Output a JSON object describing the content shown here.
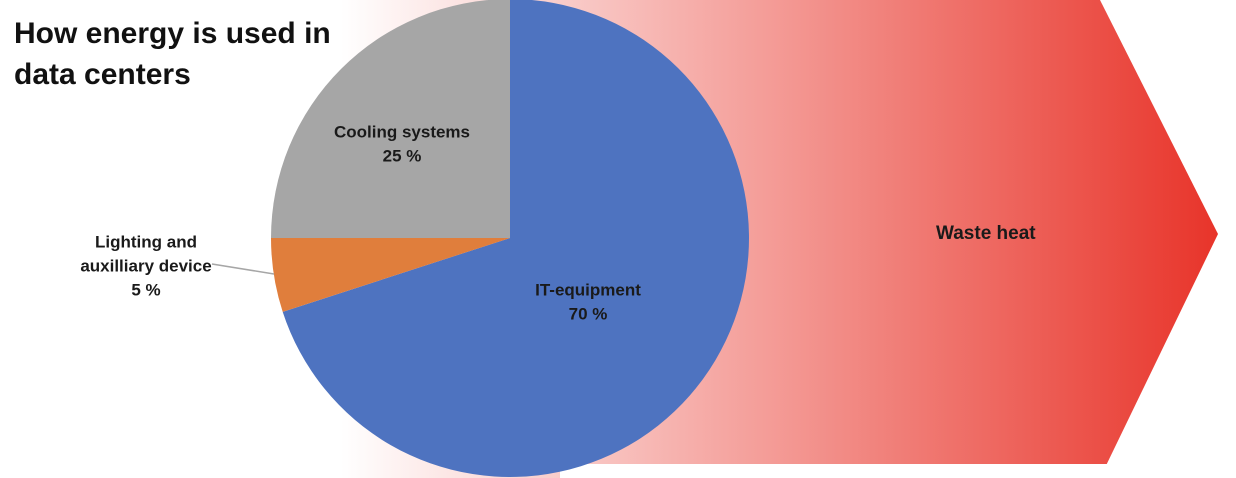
{
  "chart_data": {
    "type": "pie",
    "title_lines": [
      "How energy is used in",
      "data centers"
    ],
    "slices": [
      {
        "name": "IT-equipment",
        "value": 70,
        "value_label": "70 %",
        "color": "#4e73c0",
        "label_lines": [
          "IT-equipment",
          "70 %"
        ]
      },
      {
        "name": "Lighting and auxilliary device",
        "value": 5,
        "value_label": "5 %",
        "color": "#e07e3c",
        "label_lines": [
          "Lighting and",
          "auxilliary device",
          "5 %"
        ]
      },
      {
        "name": "Cooling systems",
        "value": 25,
        "value_label": "25 %",
        "color": "#a6a6a6",
        "label_lines": [
          "Cooling systems",
          "25 %"
        ]
      }
    ],
    "start_angle_deg": 0,
    "direction": "clockwise",
    "arrow": {
      "label": "Waste heat",
      "gradient_start": "#ffffff",
      "gradient_end": "#e8342a"
    }
  }
}
